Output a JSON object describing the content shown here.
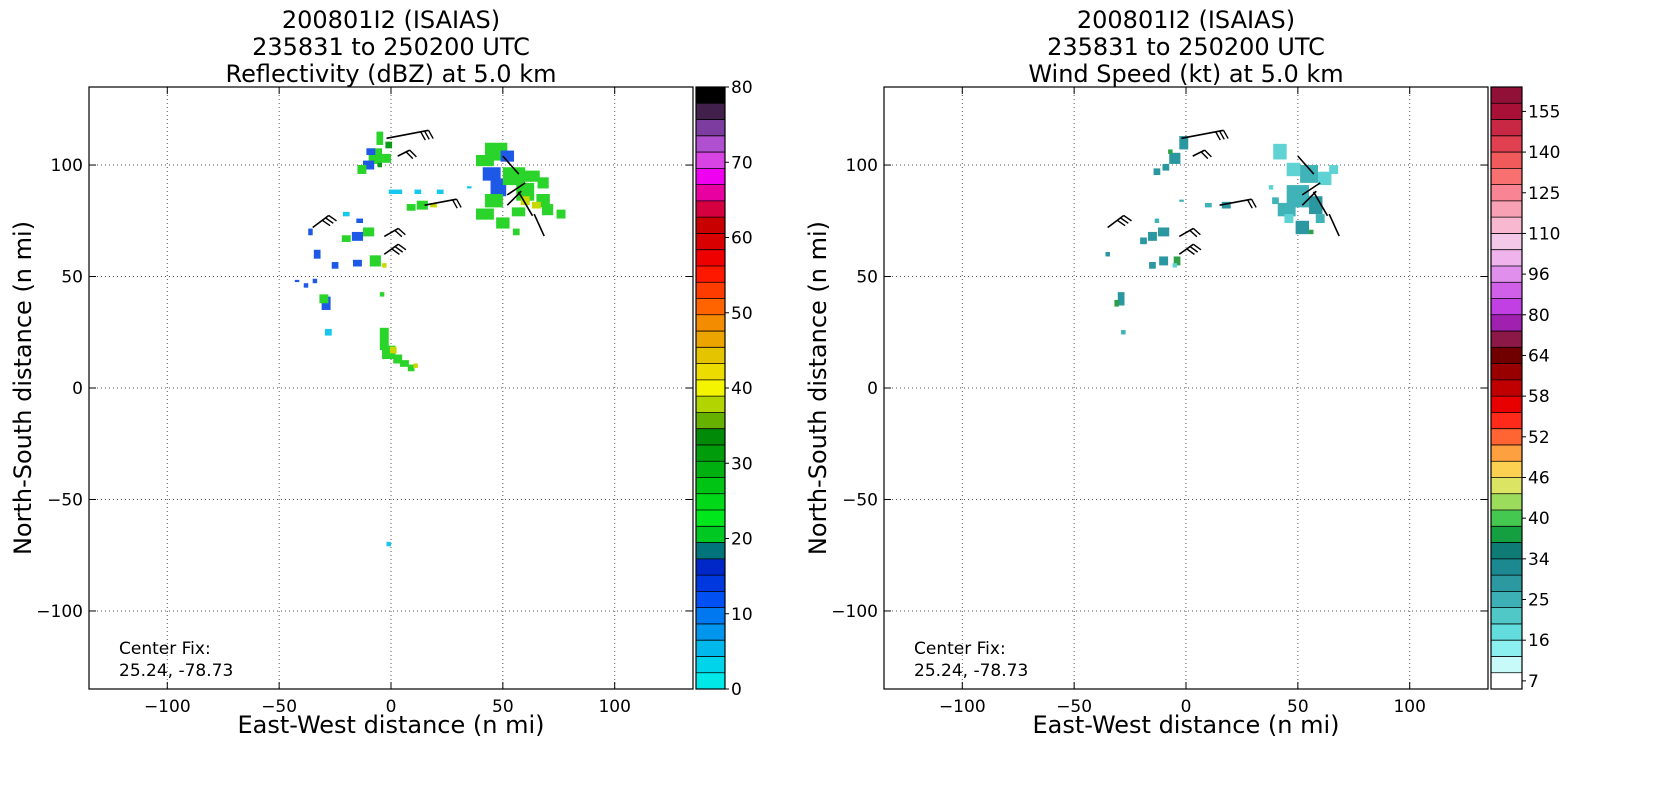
{
  "chart_data": [
    {
      "type": "heatmap",
      "title_lines": [
        "200801I2 (ISAIAS)",
        "235831 to 250200 UTC",
        "Reflectivity (dBZ) at 5.0 km"
      ],
      "xlabel": "East-West distance (n mi)",
      "ylabel": "North-South distance (n mi)",
      "xlim": [
        -135,
        135
      ],
      "ylim": [
        -135,
        135
      ],
      "xticks": [
        -100,
        -50,
        0,
        50,
        100
      ],
      "yticks": [
        -100,
        -50,
        0,
        50,
        100
      ],
      "grid": true,
      "annotation": [
        "Center Fix:",
        "25.24, -78.73"
      ],
      "colorbar": {
        "min": 0,
        "max": 80,
        "tick_labels": [
          "0",
          "10",
          "20",
          "30",
          "40",
          "50",
          "60",
          "70",
          "80"
        ],
        "colors": [
          "#00e8e8",
          "#00d4ea",
          "#00b8ec",
          "#0096ee",
          "#0078f0",
          "#0050f4",
          "#0038e0",
          "#0028c8",
          "#00747a",
          "#00c823",
          "#00e81c",
          "#00d818",
          "#00c414",
          "#00b010",
          "#009c0c",
          "#008a08",
          "#66b000",
          "#b2d400",
          "#f4f400",
          "#ecdc00",
          "#e4c400",
          "#eca400",
          "#f48c00",
          "#ff6400",
          "#ff3c00",
          "#ff1800",
          "#ee0000",
          "#d80000",
          "#c80000",
          "#d40040",
          "#e800a0",
          "#f000f0",
          "#d844e4",
          "#b050d0",
          "#7c3ca0",
          "#42204c",
          "#000000"
        ]
      },
      "cells": [
        [
          -5,
          112,
          3,
          6,
          "g"
        ],
        [
          -7,
          104,
          6,
          7,
          "g"
        ],
        [
          -10,
          100,
          5,
          4,
          "b"
        ],
        [
          -9,
          106,
          4,
          3,
          "b"
        ],
        [
          -2,
          103,
          4,
          4,
          "g"
        ],
        [
          -13,
          98,
          4,
          4,
          "g"
        ],
        [
          -1,
          109,
          3,
          3,
          "gd"
        ],
        [
          -5,
          100,
          2,
          2,
          "gd"
        ],
        [
          47,
          106,
          10,
          8,
          "g"
        ],
        [
          42,
          102,
          8,
          5,
          "g"
        ],
        [
          52,
          104,
          6,
          5,
          "b"
        ],
        [
          45,
          96,
          8,
          6,
          "b"
        ],
        [
          48,
          90,
          7,
          8,
          "b"
        ],
        [
          55,
          95,
          10,
          8,
          "g"
        ],
        [
          63,
          95,
          7,
          5,
          "g"
        ],
        [
          68,
          92,
          5,
          5,
          "g"
        ],
        [
          60,
          88,
          8,
          8,
          "g"
        ],
        [
          68,
          84,
          6,
          6,
          "g"
        ],
        [
          70,
          80,
          5,
          5,
          "g"
        ],
        [
          76,
          78,
          4,
          4,
          "g"
        ],
        [
          46,
          84,
          8,
          6,
          "g"
        ],
        [
          42,
          78,
          8,
          5,
          "g"
        ],
        [
          50,
          74,
          6,
          5,
          "g"
        ],
        [
          57,
          79,
          6,
          4,
          "g"
        ],
        [
          60,
          84,
          4,
          4,
          "y"
        ],
        [
          65,
          82,
          4,
          3,
          "y"
        ],
        [
          56,
          70,
          3,
          3,
          "g"
        ],
        [
          2,
          88,
          6,
          2,
          "c"
        ],
        [
          12,
          88,
          3,
          2,
          "c"
        ],
        [
          22,
          88,
          3,
          2,
          "c"
        ],
        [
          -20,
          78,
          3,
          2,
          "c"
        ],
        [
          35,
          90,
          2,
          1,
          "c"
        ],
        [
          14,
          82,
          5,
          4,
          "g"
        ],
        [
          9,
          81,
          4,
          3,
          "g"
        ],
        [
          19,
          82,
          3,
          2,
          "y"
        ],
        [
          -10,
          70,
          5,
          4,
          "g"
        ],
        [
          -15,
          68,
          5,
          4,
          "b"
        ],
        [
          -20,
          67,
          4,
          3,
          "g"
        ],
        [
          -14,
          75,
          3,
          2,
          "b"
        ],
        [
          -36,
          70,
          2,
          3,
          "b"
        ],
        [
          -33,
          60,
          3,
          4,
          "b"
        ],
        [
          -25,
          55,
          3,
          3,
          "b"
        ],
        [
          -15,
          56,
          4,
          3,
          "b"
        ],
        [
          -7,
          57,
          5,
          5,
          "g"
        ],
        [
          -3,
          55,
          2,
          2,
          "y"
        ],
        [
          -29,
          38,
          4,
          6,
          "b"
        ],
        [
          -30,
          40,
          4,
          4,
          "g"
        ],
        [
          -38,
          46,
          2,
          2,
          "b"
        ],
        [
          -34,
          48,
          2,
          2,
          "b"
        ],
        [
          -28,
          25,
          3,
          3,
          "c"
        ],
        [
          -4,
          42,
          2,
          2,
          "g"
        ],
        [
          -42,
          48,
          2,
          1,
          "b"
        ],
        [
          -3,
          22,
          4,
          10,
          "g"
        ],
        [
          -1,
          16,
          6,
          6,
          "g"
        ],
        [
          3,
          13,
          4,
          4,
          "g"
        ],
        [
          6,
          11,
          4,
          3,
          "g"
        ],
        [
          9,
          9,
          3,
          3,
          "g"
        ],
        [
          1,
          17,
          3,
          3,
          "y"
        ],
        [
          11,
          10,
          2,
          2,
          "y"
        ],
        [
          -1,
          -70,
          2,
          2,
          "c"
        ]
      ]
    },
    {
      "type": "heatmap",
      "title_lines": [
        "200801I2 (ISAIAS)",
        "235831 to 250200 UTC",
        "Wind Speed (kt) at 5.0 km"
      ],
      "xlabel": "East-West distance (n mi)",
      "ylabel": "North-South distance (n mi)",
      "xlim": [
        -135,
        135
      ],
      "ylim": [
        -135,
        135
      ],
      "xticks": [
        -100,
        -50,
        0,
        50,
        100
      ],
      "yticks": [
        -100,
        -50,
        0,
        50,
        100
      ],
      "grid": true,
      "annotation": [
        "Center Fix:",
        "25.24, -78.73"
      ],
      "colorbar": {
        "min": 7,
        "max": 160,
        "tick_labels": [
          "7",
          "16",
          "25",
          "34",
          "40",
          "46",
          "52",
          "58",
          "64",
          "80",
          "96",
          "110",
          "125",
          "140",
          "155"
        ],
        "colors": [
          "#ffffff",
          "#c8fafa",
          "#8cf0f0",
          "#62dcdc",
          "#50c8c8",
          "#3cb0b4",
          "#2c98a0",
          "#1c8890",
          "#0e7c74",
          "#14a040",
          "#44c850",
          "#9cdc5c",
          "#dce464",
          "#fcd050",
          "#fca040",
          "#ff6432",
          "#ff2a1a",
          "#e80000",
          "#c00000",
          "#980000",
          "#700000",
          "#8c1848",
          "#a020b0",
          "#c040e4",
          "#d060e8",
          "#e090ec",
          "#f0b4ec",
          "#f4c8e8",
          "#f8b8d0",
          "#f8a0b4",
          "#f88494",
          "#f87070",
          "#f05a5a",
          "#e04050",
          "#c82844",
          "#a81038",
          "#901038"
        ]
      },
      "cells": [
        [
          -1,
          110,
          4,
          6,
          "t1"
        ],
        [
          -5,
          103,
          5,
          5,
          "t1"
        ],
        [
          -9,
          99,
          3,
          3,
          "t1"
        ],
        [
          -13,
          97,
          3,
          3,
          "t1"
        ],
        [
          -7,
          106,
          2,
          2,
          "gr"
        ],
        [
          42,
          106,
          6,
          7,
          "t3"
        ],
        [
          48,
          98,
          6,
          6,
          "t3"
        ],
        [
          55,
          96,
          8,
          8,
          "t2"
        ],
        [
          62,
          94,
          6,
          6,
          "t3"
        ],
        [
          66,
          98,
          4,
          4,
          "t3"
        ],
        [
          50,
          86,
          10,
          10,
          "t2"
        ],
        [
          58,
          82,
          6,
          8,
          "t1"
        ],
        [
          45,
          80,
          8,
          6,
          "t2"
        ],
        [
          52,
          72,
          6,
          6,
          "t1"
        ],
        [
          60,
          76,
          4,
          4,
          "t2"
        ],
        [
          38,
          90,
          2,
          2,
          "t3"
        ],
        [
          46,
          76,
          4,
          4,
          "t3"
        ],
        [
          40,
          84,
          3,
          3,
          "t2"
        ],
        [
          56,
          70,
          2,
          2,
          "gr"
        ],
        [
          18,
          82,
          4,
          3,
          "t1"
        ],
        [
          10,
          82,
          3,
          2,
          "t2"
        ],
        [
          -10,
          70,
          5,
          4,
          "t1"
        ],
        [
          -15,
          68,
          4,
          4,
          "t1"
        ],
        [
          -19,
          66,
          3,
          3,
          "t1"
        ],
        [
          -13,
          75,
          2,
          2,
          "t2"
        ],
        [
          -10,
          57,
          4,
          4,
          "t1"
        ],
        [
          -15,
          55,
          3,
          3,
          "t1"
        ],
        [
          -4,
          57,
          3,
          4,
          "gr"
        ],
        [
          -5,
          55,
          2,
          2,
          "t3"
        ],
        [
          -29,
          40,
          3,
          6,
          "t1"
        ],
        [
          -31,
          38,
          2,
          3,
          "gr"
        ],
        [
          -35,
          60,
          2,
          2,
          "t1"
        ],
        [
          -28,
          25,
          2,
          2,
          "t2"
        ],
        [
          -2,
          84,
          2,
          1,
          "t2"
        ]
      ]
    }
  ]
}
